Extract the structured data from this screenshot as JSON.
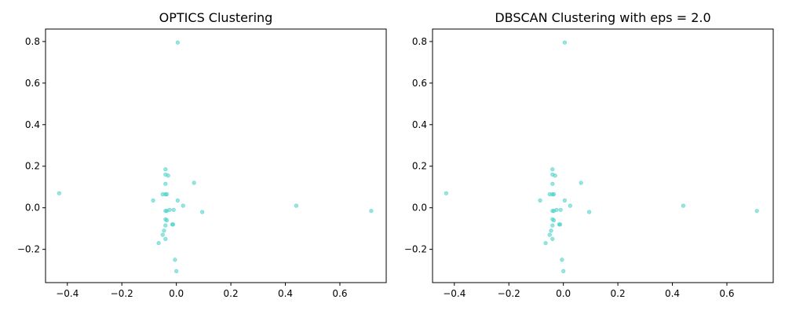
{
  "chart_data": [
    {
      "type": "scatter",
      "title": "OPTICS Clustering",
      "xlabel": "",
      "ylabel": "",
      "xlim": [
        -0.48,
        0.77
      ],
      "ylim": [
        -0.36,
        0.86
      ],
      "xticks": [
        -0.4,
        -0.2,
        0.0,
        0.2,
        0.4,
        0.6
      ],
      "xtick_labels": [
        "−0.4",
        "−0.2",
        "0.0",
        "0.2",
        "0.4",
        "0.6"
      ],
      "yticks": [
        -0.2,
        0.0,
        0.2,
        0.4,
        0.6,
        0.8
      ],
      "ytick_labels": [
        "−0.2",
        "0.0",
        "0.2",
        "0.4",
        "0.6",
        "0.8"
      ],
      "grid": false,
      "color": "#40d0c8",
      "points": [
        {
          "x": 0.005,
          "y": 0.795
        },
        {
          "x": -0.43,
          "y": 0.07
        },
        {
          "x": -0.085,
          "y": 0.035
        },
        {
          "x": -0.04,
          "y": 0.185
        },
        {
          "x": -0.04,
          "y": 0.16
        },
        {
          "x": -0.03,
          "y": 0.155
        },
        {
          "x": -0.04,
          "y": 0.115
        },
        {
          "x": 0.065,
          "y": 0.12
        },
        {
          "x": -0.05,
          "y": 0.065
        },
        {
          "x": -0.04,
          "y": 0.065
        },
        {
          "x": -0.035,
          "y": 0.065
        },
        {
          "x": 0.005,
          "y": 0.035
        },
        {
          "x": 0.025,
          "y": 0.01
        },
        {
          "x": -0.04,
          "y": -0.015
        },
        {
          "x": -0.035,
          "y": -0.015
        },
        {
          "x": -0.025,
          "y": -0.01
        },
        {
          "x": -0.01,
          "y": -0.01
        },
        {
          "x": 0.095,
          "y": -0.02
        },
        {
          "x": 0.44,
          "y": 0.01
        },
        {
          "x": 0.715,
          "y": -0.015
        },
        {
          "x": -0.04,
          "y": -0.055
        },
        {
          "x": -0.035,
          "y": -0.06
        },
        {
          "x": -0.015,
          "y": -0.08
        },
        {
          "x": -0.012,
          "y": -0.08
        },
        {
          "x": -0.04,
          "y": -0.085
        },
        {
          "x": -0.045,
          "y": -0.11
        },
        {
          "x": -0.05,
          "y": -0.13
        },
        {
          "x": -0.04,
          "y": -0.15
        },
        {
          "x": -0.065,
          "y": -0.17
        },
        {
          "x": -0.005,
          "y": -0.25
        },
        {
          "x": 0.0,
          "y": -0.305
        }
      ]
    },
    {
      "type": "scatter",
      "title": "DBSCAN Clustering with eps = 2.0",
      "xlabel": "",
      "ylabel": "",
      "xlim": [
        -0.48,
        0.77
      ],
      "ylim": [
        -0.36,
        0.86
      ],
      "xticks": [
        -0.4,
        -0.2,
        0.0,
        0.2,
        0.4,
        0.6
      ],
      "xtick_labels": [
        "−0.4",
        "−0.2",
        "0.0",
        "0.2",
        "0.4",
        "0.6"
      ],
      "yticks": [
        -0.2,
        0.0,
        0.2,
        0.4,
        0.6,
        0.8
      ],
      "ytick_labels": [
        "−0.2",
        "0.0",
        "0.2",
        "0.4",
        "0.6",
        "0.8"
      ],
      "grid": false,
      "color": "#40d0c8",
      "points": [
        {
          "x": 0.005,
          "y": 0.795
        },
        {
          "x": -0.43,
          "y": 0.07
        },
        {
          "x": -0.085,
          "y": 0.035
        },
        {
          "x": -0.04,
          "y": 0.185
        },
        {
          "x": -0.04,
          "y": 0.16
        },
        {
          "x": -0.03,
          "y": 0.155
        },
        {
          "x": -0.04,
          "y": 0.115
        },
        {
          "x": 0.065,
          "y": 0.12
        },
        {
          "x": -0.05,
          "y": 0.065
        },
        {
          "x": -0.04,
          "y": 0.065
        },
        {
          "x": -0.035,
          "y": 0.065
        },
        {
          "x": 0.005,
          "y": 0.035
        },
        {
          "x": 0.025,
          "y": 0.01
        },
        {
          "x": -0.04,
          "y": -0.015
        },
        {
          "x": -0.035,
          "y": -0.015
        },
        {
          "x": -0.025,
          "y": -0.01
        },
        {
          "x": -0.01,
          "y": -0.01
        },
        {
          "x": 0.095,
          "y": -0.02
        },
        {
          "x": 0.44,
          "y": 0.01
        },
        {
          "x": 0.71,
          "y": -0.015
        },
        {
          "x": -0.04,
          "y": -0.055
        },
        {
          "x": -0.035,
          "y": -0.06
        },
        {
          "x": -0.015,
          "y": -0.08
        },
        {
          "x": -0.012,
          "y": -0.08
        },
        {
          "x": -0.04,
          "y": -0.085
        },
        {
          "x": -0.045,
          "y": -0.11
        },
        {
          "x": -0.05,
          "y": -0.13
        },
        {
          "x": -0.04,
          "y": -0.15
        },
        {
          "x": -0.065,
          "y": -0.17
        },
        {
          "x": -0.005,
          "y": -0.25
        },
        {
          "x": 0.0,
          "y": -0.305
        }
      ]
    }
  ]
}
